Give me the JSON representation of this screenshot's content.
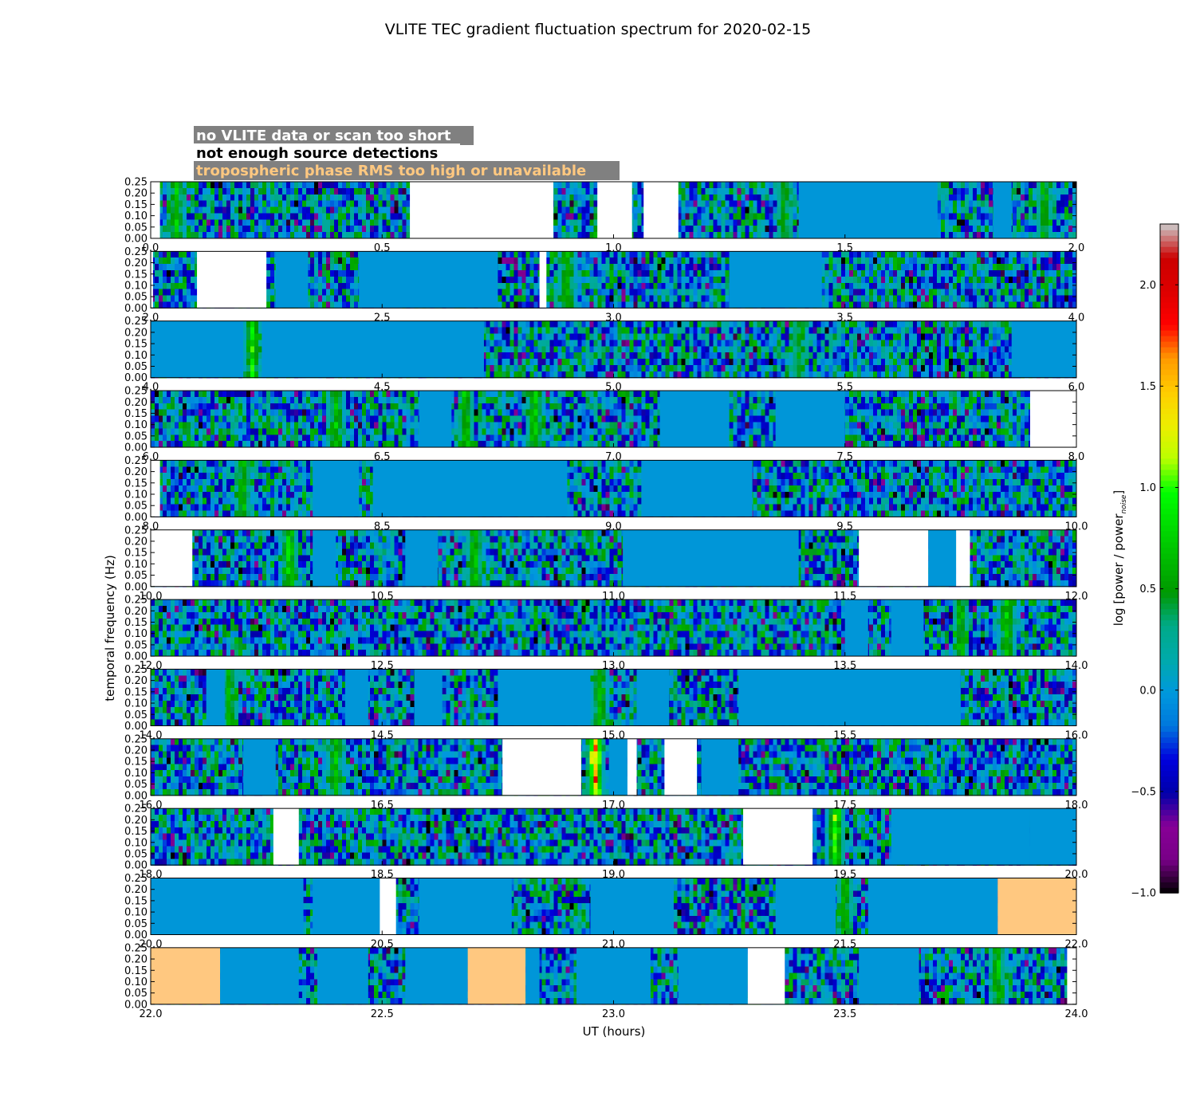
{
  "chart_data": {
    "type": "heatmap",
    "title": "VLITE TEC gradient fluctuation spectrum for 2020-02-15",
    "xlabel": "UT (hours)",
    "ylabel": "temporal frequency (Hz)",
    "colorbar_label": "log [power / power",
    "colorbar_subscript": "noise",
    "colorbar_close": "]",
    "colorbar_ticks": [
      "−1.0",
      "−0.5",
      "0.0",
      "0.5",
      "1.0",
      "1.5",
      "2.0"
    ],
    "colorbar_range": [
      -1.0,
      2.3
    ],
    "colormap": "nipy_spectral",
    "ylim": [
      0,
      0.25
    ],
    "y_ticks": [
      "0.00",
      "0.05",
      "0.10",
      "0.15",
      "0.20",
      "0.25"
    ],
    "legend": [
      {
        "label": "no VLITE data or scan too short",
        "text_color": "#ffffff"
      },
      {
        "label": "not enough source detections",
        "text_color": "#000000"
      },
      {
        "label": "tropospheric phase RMS too high or unavailable",
        "text_color": "#ffc880"
      }
    ],
    "colors": {
      "no_data": "#ffffff",
      "few_detections": "#0096d8",
      "bad_troposphere": "#ffc880",
      "legend_box": "#808080"
    },
    "panels": [
      {
        "range": [
          0,
          2
        ],
        "ticks": [
          "0.0",
          "0.5",
          "1.0",
          "1.5",
          "2.0"
        ],
        "masks": [
          {
            "from": 0.0,
            "to": 0.02,
            "kind": "no_data"
          },
          {
            "from": 0.56,
            "to": 0.87,
            "kind": "no_data"
          },
          {
            "from": 0.965,
            "to": 1.04,
            "kind": "no_data"
          },
          {
            "from": 1.065,
            "to": 1.14,
            "kind": "no_data"
          },
          {
            "from": 1.4,
            "to": 1.7,
            "kind": "few_detections"
          },
          {
            "from": 1.82,
            "to": 1.86,
            "kind": "few_detections"
          }
        ],
        "hot": [
          {
            "at": 0.055,
            "level": 0.8
          },
          {
            "at": 1.37,
            "level": 0.65
          },
          {
            "at": 1.93,
            "level": 0.7
          }
        ]
      },
      {
        "range": [
          2,
          4
        ],
        "ticks": [
          "2.0",
          "2.5",
          "3.0",
          "3.5",
          "4.0"
        ],
        "masks": [
          {
            "from": 2.0,
            "to": 2.005,
            "kind": "no_data"
          },
          {
            "from": 2.1,
            "to": 2.25,
            "kind": "no_data"
          },
          {
            "from": 2.84,
            "to": 2.855,
            "kind": "no_data"
          },
          {
            "from": 2.27,
            "to": 2.34,
            "kind": "few_detections"
          },
          {
            "from": 2.45,
            "to": 2.75,
            "kind": "few_detections"
          },
          {
            "from": 3.25,
            "to": 3.45,
            "kind": "few_detections"
          }
        ],
        "hot": [
          {
            "at": 2.31,
            "level": 0.8
          },
          {
            "at": 2.9,
            "level": 0.85
          }
        ]
      },
      {
        "range": [
          4,
          6
        ],
        "ticks": [
          "4.0",
          "4.5",
          "5.0",
          "5.5",
          "6.0"
        ],
        "masks": [
          {
            "from": 4.0,
            "to": 4.2,
            "kind": "few_detections"
          },
          {
            "from": 4.24,
            "to": 4.72,
            "kind": "few_detections"
          },
          {
            "from": 5.86,
            "to": 6.0,
            "kind": "few_detections"
          }
        ],
        "hot": [
          {
            "at": 4.22,
            "level": 1.0
          },
          {
            "at": 5.4,
            "level": 0.6
          }
        ]
      },
      {
        "range": [
          6,
          8
        ],
        "ticks": [
          "6.0",
          "6.5",
          "7.0",
          "7.5",
          "8.0"
        ],
        "masks": [
          {
            "from": 6.58,
            "to": 6.65,
            "kind": "few_detections"
          },
          {
            "from": 7.1,
            "to": 7.25,
            "kind": "few_detections"
          },
          {
            "from": 7.35,
            "to": 7.5,
            "kind": "few_detections"
          },
          {
            "from": 7.9,
            "to": 8.0,
            "kind": "no_data"
          }
        ],
        "hot": [
          {
            "at": 6.4,
            "level": 0.85
          },
          {
            "at": 6.68,
            "level": 0.9
          },
          {
            "at": 6.83,
            "level": 0.95
          },
          {
            "at": 7.15,
            "level": 0.8
          }
        ]
      },
      {
        "range": [
          8,
          10
        ],
        "ticks": [
          "8.0",
          "8.5",
          "9.0",
          "9.5",
          "10.0"
        ],
        "masks": [
          {
            "from": 8.0,
            "to": 8.02,
            "kind": "no_data"
          },
          {
            "from": 8.35,
            "to": 8.45,
            "kind": "few_detections"
          },
          {
            "from": 8.48,
            "to": 8.9,
            "kind": "few_detections"
          },
          {
            "from": 9.06,
            "to": 9.3,
            "kind": "few_detections"
          }
        ],
        "hot": [
          {
            "at": 8.2,
            "level": 0.8
          }
        ]
      },
      {
        "range": [
          10,
          12
        ],
        "ticks": [
          "10.0",
          "10.5",
          "11.0",
          "11.5",
          "12.0"
        ],
        "masks": [
          {
            "from": 10.0,
            "to": 10.09,
            "kind": "no_data"
          },
          {
            "from": 11.53,
            "to": 11.68,
            "kind": "no_data"
          },
          {
            "from": 11.74,
            "to": 11.77,
            "kind": "no_data"
          },
          {
            "from": 10.35,
            "to": 10.4,
            "kind": "few_detections"
          },
          {
            "from": 10.55,
            "to": 10.62,
            "kind": "few_detections"
          },
          {
            "from": 11.02,
            "to": 11.4,
            "kind": "few_detections"
          },
          {
            "from": 11.68,
            "to": 11.74,
            "kind": "few_detections"
          }
        ],
        "hot": [
          {
            "at": 10.3,
            "level": 0.95
          },
          {
            "at": 10.7,
            "level": 0.9
          }
        ]
      },
      {
        "range": [
          12,
          14
        ],
        "ticks": [
          "12.0",
          "12.5",
          "13.0",
          "13.5",
          "14.0"
        ],
        "masks": [
          {
            "from": 13.5,
            "to": 13.55,
            "kind": "few_detections"
          },
          {
            "from": 13.6,
            "to": 13.67,
            "kind": "few_detections"
          }
        ],
        "hot": [
          {
            "at": 13.75,
            "level": 0.8
          },
          {
            "at": 13.85,
            "level": 0.85
          }
        ]
      },
      {
        "range": [
          14,
          16
        ],
        "ticks": [
          "14.0",
          "14.5",
          "15.0",
          "15.5",
          "16.0"
        ],
        "masks": [
          {
            "from": 14.12,
            "to": 14.16,
            "kind": "few_detections"
          },
          {
            "from": 14.42,
            "to": 14.47,
            "kind": "few_detections"
          },
          {
            "from": 14.57,
            "to": 14.63,
            "kind": "few_detections"
          },
          {
            "from": 14.75,
            "to": 14.95,
            "kind": "few_detections"
          },
          {
            "from": 15.05,
            "to": 15.12,
            "kind": "few_detections"
          },
          {
            "from": 15.27,
            "to": 15.75,
            "kind": "few_detections"
          }
        ],
        "hot": [
          {
            "at": 14.17,
            "level": 0.8
          },
          {
            "at": 14.97,
            "level": 0.75
          }
        ]
      },
      {
        "range": [
          16,
          18
        ],
        "ticks": [
          "16.0",
          "16.5",
          "17.0",
          "17.5",
          "18.0"
        ],
        "masks": [
          {
            "from": 16.2,
            "to": 16.27,
            "kind": "few_detections"
          },
          {
            "from": 16.76,
            "to": 16.93,
            "kind": "no_data"
          },
          {
            "from": 17.11,
            "to": 17.18,
            "kind": "no_data"
          },
          {
            "from": 16.99,
            "to": 17.03,
            "kind": "few_detections"
          },
          {
            "from": 17.03,
            "to": 17.05,
            "kind": "no_data"
          },
          {
            "from": 17.19,
            "to": 17.27,
            "kind": "few_detections"
          }
        ],
        "hot": [
          {
            "at": 16.96,
            "level": 1.9
          },
          {
            "at": 16.4,
            "level": 0.8
          }
        ]
      },
      {
        "range": [
          18,
          20
        ],
        "ticks": [
          "18.0",
          "18.5",
          "19.0",
          "19.5",
          "20.0"
        ],
        "masks": [
          {
            "from": 18.265,
            "to": 18.32,
            "kind": "no_data"
          },
          {
            "from": 19.28,
            "to": 19.43,
            "kind": "no_data"
          },
          {
            "from": 19.6,
            "to": 19.9,
            "kind": "few_detections"
          },
          {
            "from": 19.9,
            "to": 20.0,
            "kind": "few_detections"
          }
        ],
        "hot": [
          {
            "at": 19.48,
            "level": 1.15
          }
        ]
      },
      {
        "range": [
          20,
          22
        ],
        "ticks": [
          "20.0",
          "20.5",
          "21.0",
          "21.5",
          "22.0"
        ],
        "masks": [
          {
            "from": 20.0,
            "to": 20.33,
            "kind": "few_detections"
          },
          {
            "from": 20.35,
            "to": 20.5,
            "kind": "few_detections"
          },
          {
            "from": 20.495,
            "to": 20.53,
            "kind": "no_data"
          },
          {
            "from": 20.58,
            "to": 20.78,
            "kind": "few_detections"
          },
          {
            "from": 20.95,
            "to": 21.13,
            "kind": "few_detections"
          },
          {
            "from": 21.35,
            "to": 21.48,
            "kind": "few_detections"
          },
          {
            "from": 21.55,
            "to": 21.83,
            "kind": "few_detections"
          },
          {
            "from": 21.83,
            "to": 22.0,
            "kind": "bad_troposphere"
          }
        ],
        "hot": [
          {
            "at": 21.5,
            "level": 0.75
          }
        ]
      },
      {
        "range": [
          22,
          24
        ],
        "ticks": [
          "22.0",
          "22.5",
          "23.0",
          "23.5",
          "24.0"
        ],
        "masks": [
          {
            "from": 22.0,
            "to": 22.15,
            "kind": "bad_troposphere"
          },
          {
            "from": 22.15,
            "to": 22.32,
            "kind": "few_detections"
          },
          {
            "from": 22.36,
            "to": 22.47,
            "kind": "few_detections"
          },
          {
            "from": 22.55,
            "to": 22.685,
            "kind": "few_detections"
          },
          {
            "from": 22.685,
            "to": 22.81,
            "kind": "bad_troposphere"
          },
          {
            "from": 22.81,
            "to": 22.84,
            "kind": "few_detections"
          },
          {
            "from": 22.92,
            "to": 23.08,
            "kind": "few_detections"
          },
          {
            "from": 23.14,
            "to": 23.29,
            "kind": "few_detections"
          },
          {
            "from": 23.29,
            "to": 23.37,
            "kind": "no_data"
          },
          {
            "from": 23.53,
            "to": 23.66,
            "kind": "few_detections"
          },
          {
            "from": 23.98,
            "to": 24.0,
            "kind": "no_data"
          }
        ],
        "hot": [
          {
            "at": 23.83,
            "level": 0.8
          }
        ]
      }
    ]
  }
}
